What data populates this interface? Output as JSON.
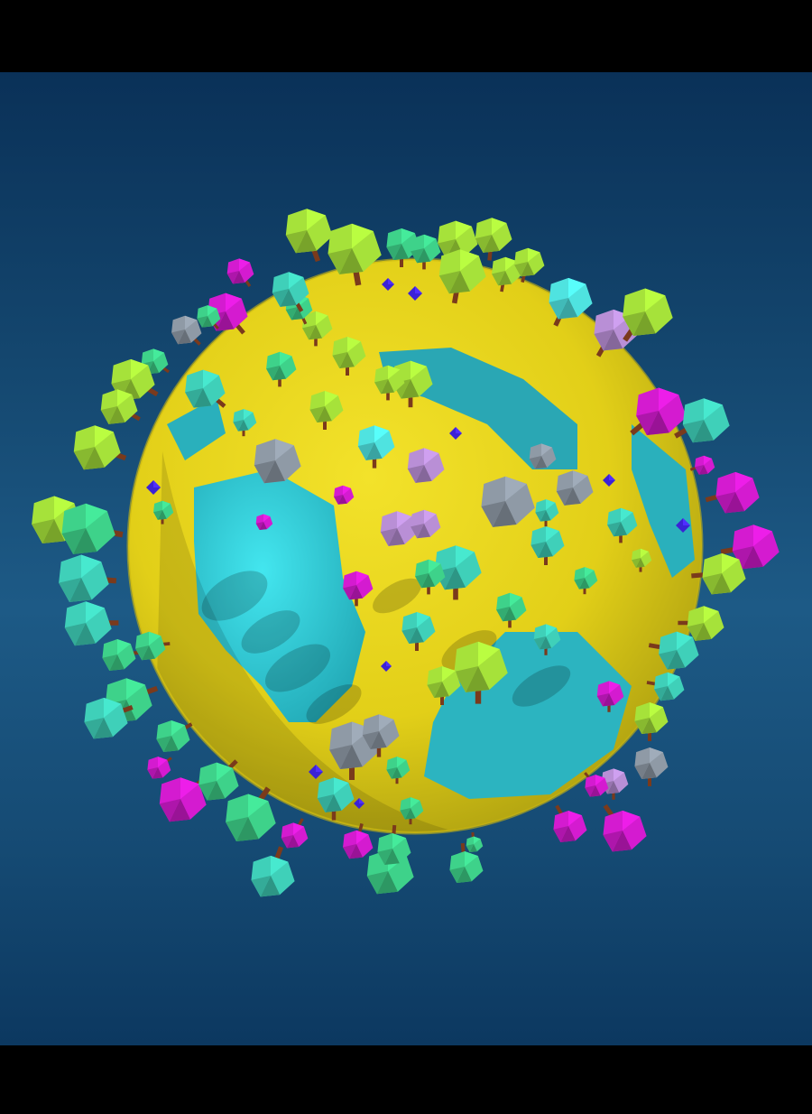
{
  "scene": {
    "description_type": "low-poly planet diorama",
    "colors": {
      "background_top": "#0a3158",
      "background_mid": "#1d5a86",
      "planet_sand": "#e6d21a",
      "planet_sand_shadow": "#9e9312",
      "water": "#2ec9d6",
      "water_shadow": "#1f8f9b",
      "tree_lime": "#a6e23a",
      "tree_green": "#3ed28a",
      "tree_teal": "#3fd0b9",
      "tree_cyan": "#4fe3e0",
      "tree_magenta": "#d41bd0",
      "tree_lilac": "#b98fd6",
      "rock_gray": "#8f9aa6",
      "trunk": "#7a3a1c",
      "gem_blue": "#3b22d6"
    },
    "objects": [
      "planet-sphere",
      "tree",
      "rock",
      "gem"
    ]
  }
}
